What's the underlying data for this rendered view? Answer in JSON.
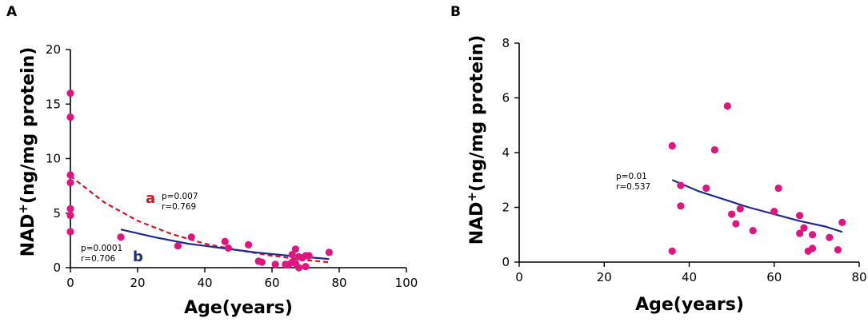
{
  "chart_data": [
    {
      "panel_label": "A",
      "type": "scatter",
      "xlabel": "Age(years)",
      "ylabel": "NAD+(ng/mg protein)",
      "xlim": [
        0,
        100
      ],
      "ylim": [
        0,
        20
      ],
      "xticks": [
        0,
        20,
        40,
        60,
        80,
        100
      ],
      "yticks": [
        0,
        5,
        10,
        15,
        20
      ],
      "points": [
        {
          "x": 0,
          "y": 16.0
        },
        {
          "x": 0,
          "y": 13.8
        },
        {
          "x": 0,
          "y": 8.5
        },
        {
          "x": 0,
          "y": 7.8
        },
        {
          "x": 0,
          "y": 5.4
        },
        {
          "x": 0,
          "y": 4.8
        },
        {
          "x": 0,
          "y": 3.3
        },
        {
          "x": 15,
          "y": 2.8
        },
        {
          "x": 32,
          "y": 2.0
        },
        {
          "x": 36,
          "y": 2.8
        },
        {
          "x": 46,
          "y": 2.4
        },
        {
          "x": 47,
          "y": 1.8
        },
        {
          "x": 53,
          "y": 2.1
        },
        {
          "x": 56,
          "y": 0.6
        },
        {
          "x": 57,
          "y": 0.5
        },
        {
          "x": 61,
          "y": 0.3
        },
        {
          "x": 64,
          "y": 0.3
        },
        {
          "x": 65,
          "y": 0.3
        },
        {
          "x": 66,
          "y": 0.5
        },
        {
          "x": 66,
          "y": 1.2
        },
        {
          "x": 67,
          "y": 1.7
        },
        {
          "x": 67,
          "y": 0.4
        },
        {
          "x": 68,
          "y": 0.0
        },
        {
          "x": 68,
          "y": 1.0
        },
        {
          "x": 69,
          "y": 0.9
        },
        {
          "x": 70,
          "y": 1.1
        },
        {
          "x": 70,
          "y": 0.1
        },
        {
          "x": 71,
          "y": 1.1
        },
        {
          "x": 77,
          "y": 1.4
        }
      ],
      "fits": [
        {
          "label": "a",
          "style": "dashed",
          "color": "#d7141e",
          "p": "p=0.007",
          "r": "r=0.769",
          "x": [
            0,
            10,
            20,
            30,
            40,
            50,
            60,
            70,
            77
          ],
          "y": [
            8.4,
            6.0,
            4.3,
            3.1,
            2.2,
            1.6,
            1.1,
            0.7,
            0.5
          ]
        },
        {
          "label": "b",
          "style": "solid",
          "color": "#1f2a8c",
          "p": "p=0.0001",
          "r": "r=0.706",
          "x": [
            15,
            25,
            35,
            45,
            55,
            65,
            77
          ],
          "y": [
            3.5,
            2.8,
            2.2,
            1.8,
            1.4,
            1.1,
            0.8
          ]
        }
      ]
    },
    {
      "panel_label": "B",
      "type": "scatter",
      "xlabel": "Age(years)",
      "ylabel": "NAD+(ng/mg protein)",
      "xlim": [
        0,
        80
      ],
      "ylim": [
        0,
        8
      ],
      "xticks": [
        0,
        20,
        40,
        60,
        80
      ],
      "yticks": [
        0,
        2,
        4,
        6,
        8
      ],
      "points": [
        {
          "x": 36,
          "y": 4.25
        },
        {
          "x": 36,
          "y": 0.4
        },
        {
          "x": 38,
          "y": 2.8
        },
        {
          "x": 38,
          "y": 2.05
        },
        {
          "x": 44,
          "y": 2.7
        },
        {
          "x": 46,
          "y": 4.1
        },
        {
          "x": 49,
          "y": 5.7
        },
        {
          "x": 50,
          "y": 1.75
        },
        {
          "x": 51,
          "y": 1.4
        },
        {
          "x": 52,
          "y": 1.95
        },
        {
          "x": 55,
          "y": 1.15
        },
        {
          "x": 60,
          "y": 1.85
        },
        {
          "x": 61,
          "y": 2.7
        },
        {
          "x": 66,
          "y": 1.7
        },
        {
          "x": 66,
          "y": 1.05
        },
        {
          "x": 67,
          "y": 1.25
        },
        {
          "x": 68,
          "y": 0.4
        },
        {
          "x": 69,
          "y": 1.0
        },
        {
          "x": 69,
          "y": 0.5
        },
        {
          "x": 73,
          "y": 0.9
        },
        {
          "x": 75,
          "y": 0.45
        },
        {
          "x": 76,
          "y": 1.45
        }
      ],
      "fits": [
        {
          "label": "",
          "style": "solid",
          "color": "#1f2a8c",
          "p": "p=0.01",
          "r": "r=0.537",
          "x": [
            36,
            42,
            48,
            54,
            60,
            66,
            72,
            76
          ],
          "y": [
            3.0,
            2.6,
            2.3,
            2.0,
            1.75,
            1.5,
            1.3,
            1.1
          ]
        }
      ]
    }
  ]
}
